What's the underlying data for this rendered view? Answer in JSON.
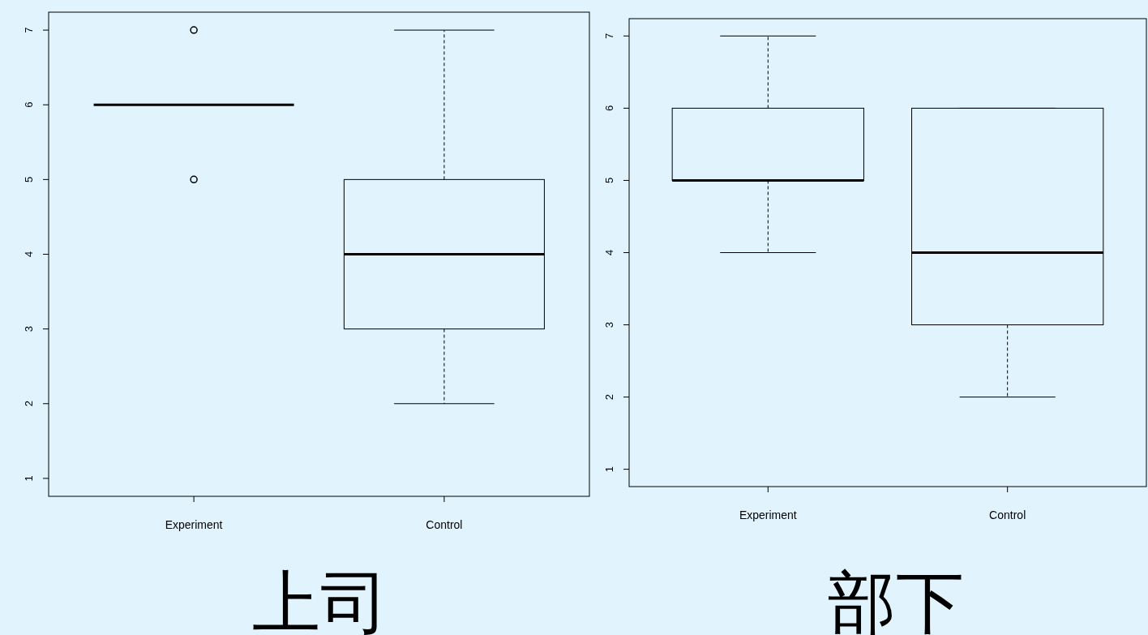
{
  "chart_data": [
    {
      "type": "box",
      "xlabel": "上司",
      "categories": [
        "Experiment",
        "Control"
      ],
      "ylim": [
        0.76,
        7.24
      ],
      "yticks": [
        1,
        2,
        3,
        4,
        5,
        6,
        7
      ],
      "boxes": [
        {
          "low": 6,
          "q1": 6,
          "median": 6,
          "q3": 6,
          "high": 6,
          "outliers": [
            5,
            7
          ]
        },
        {
          "low": 2,
          "q1": 3,
          "median": 4,
          "q3": 5,
          "high": 7
        }
      ]
    },
    {
      "type": "box",
      "xlabel": "部下",
      "categories": [
        "Experiment",
        "Control"
      ],
      "ylim": [
        0.76,
        7.24
      ],
      "yticks": [
        1,
        2,
        3,
        4,
        5,
        6,
        7
      ],
      "boxes": [
        {
          "low": 4,
          "q1": 5,
          "median": 5,
          "q3": 6,
          "high": 7
        },
        {
          "low": 2,
          "q1": 3,
          "median": 4,
          "q3": 6,
          "high": 6
        }
      ]
    }
  ]
}
